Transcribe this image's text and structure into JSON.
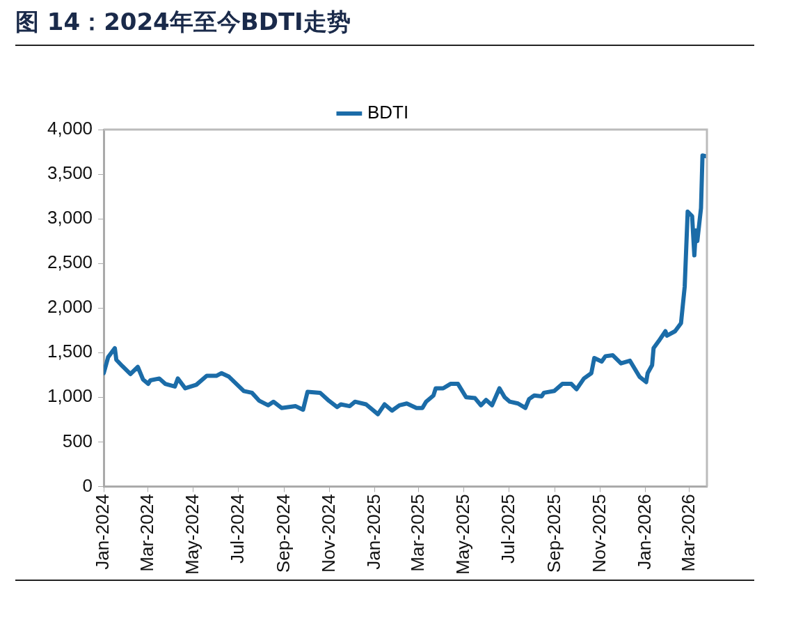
{
  "chart_data": {
    "type": "line",
    "title": "图 14：2024年至今BDTI走势",
    "legend": "top",
    "grid": false,
    "marker": "none",
    "line_style": "solid",
    "x": [
      "2024-01-01",
      "2024-01-07",
      "2024-01-16",
      "2024-01-18",
      "2024-01-26",
      "2024-02-06",
      "2024-02-16",
      "2024-02-23",
      "2024-03-01",
      "2024-03-04",
      "2024-03-16",
      "2024-03-24",
      "2024-04-06",
      "2024-04-10",
      "2024-04-20",
      "2024-05-05",
      "2024-05-19",
      "2024-06-01",
      "2024-06-08",
      "2024-06-18",
      "2024-07-08",
      "2024-07-19",
      "2024-07-29",
      "2024-08-10",
      "2024-08-17",
      "2024-08-28",
      "2024-09-16",
      "2024-09-26",
      "2024-10-02",
      "2024-10-19",
      "2024-10-31",
      "2024-11-11",
      "2024-11-16",
      "2024-11-28",
      "2024-12-05",
      "2024-12-20",
      "2025-01-05",
      "2025-01-14",
      "2025-01-24",
      "2025-02-03",
      "2025-02-13",
      "2025-02-26",
      "2025-03-06",
      "2025-03-11",
      "2025-03-21",
      "2025-03-24",
      "2025-04-03",
      "2025-04-13",
      "2025-04-23",
      "2025-05-04",
      "2025-05-16",
      "2025-05-24",
      "2025-05-31",
      "2025-06-08",
      "2025-06-18",
      "2025-06-25",
      "2025-07-02",
      "2025-07-13",
      "2025-07-23",
      "2025-07-28",
      "2025-08-04",
      "2025-08-14",
      "2025-08-17",
      "2025-08-31",
      "2025-09-11",
      "2025-09-23",
      "2025-09-30",
      "2025-10-10",
      "2025-10-20",
      "2025-10-24",
      "2025-11-03",
      "2025-11-08",
      "2025-11-18",
      "2025-11-29",
      "2025-12-11",
      "2025-12-24",
      "2026-01-02",
      "2026-01-04",
      "2026-01-10",
      "2026-01-12",
      "2026-01-19",
      "2026-01-28",
      "2026-01-30",
      "2026-02-10",
      "2026-02-18",
      "2026-02-23",
      "2026-02-27",
      "2026-03-05",
      "2026-03-08",
      "2026-03-10",
      "2026-03-12",
      "2026-03-17",
      "2026-03-19",
      "2026-03-24"
    ],
    "series": [
      {
        "name": "BDTI",
        "color": "#1b6ca8",
        "values": [
          1270,
          1450,
          1550,
          1420,
          1350,
          1260,
          1340,
          1200,
          1150,
          1190,
          1210,
          1150,
          1120,
          1210,
          1100,
          1140,
          1240,
          1240,
          1270,
          1230,
          1070,
          1050,
          960,
          910,
          950,
          880,
          900,
          860,
          1060,
          1050,
          960,
          890,
          920,
          900,
          950,
          920,
          810,
          920,
          850,
          910,
          930,
          880,
          880,
          950,
          1020,
          1100,
          1100,
          1150,
          1150,
          1000,
          990,
          910,
          970,
          910,
          1100,
          1000,
          950,
          930,
          880,
          980,
          1020,
          1010,
          1050,
          1070,
          1150,
          1150,
          1090,
          1210,
          1270,
          1440,
          1400,
          1460,
          1470,
          1380,
          1410,
          1230,
          1170,
          1270,
          1360,
          1550,
          1630,
          1740,
          1690,
          1740,
          1830,
          2240,
          3080,
          3030,
          2590,
          2870,
          2750,
          3120,
          3710,
          3700
        ]
      }
    ],
    "xlim": [
      "2024-01-01",
      "2026-03-25"
    ],
    "xticks": [
      {
        "value": "2024-01-01",
        "label": "Jan-2024"
      },
      {
        "value": "2024-03-01",
        "label": "Mar-2024"
      },
      {
        "value": "2024-05-01",
        "label": "May-2024"
      },
      {
        "value": "2024-07-01",
        "label": "Jul-2024"
      },
      {
        "value": "2024-09-01",
        "label": "Sep-2024"
      },
      {
        "value": "2024-11-01",
        "label": "Nov-2024"
      },
      {
        "value": "2025-01-01",
        "label": "Jan-2025"
      },
      {
        "value": "2025-03-01",
        "label": "Mar-2025"
      },
      {
        "value": "2025-05-01",
        "label": "May-2025"
      },
      {
        "value": "2025-07-01",
        "label": "Jul-2025"
      },
      {
        "value": "2025-09-01",
        "label": "Sep-2025"
      },
      {
        "value": "2025-11-01",
        "label": "Nov-2025"
      },
      {
        "value": "2026-01-01",
        "label": "Jan-2026"
      },
      {
        "value": "2026-03-01",
        "label": "Mar-2026"
      }
    ],
    "ylim": [
      0,
      4000
    ],
    "yticks": [
      0,
      500,
      {
        "value": 1000,
        "label": "1,000"
      },
      {
        "value": 1500,
        "label": "1,500"
      },
      {
        "value": 2000,
        "label": "2,000"
      },
      {
        "value": 2500,
        "label": "2,500"
      },
      {
        "value": 3000,
        "label": "3,000"
      },
      {
        "value": 3500,
        "label": "3,500"
      },
      {
        "value": 4000,
        "label": "4,000"
      }
    ]
  }
}
